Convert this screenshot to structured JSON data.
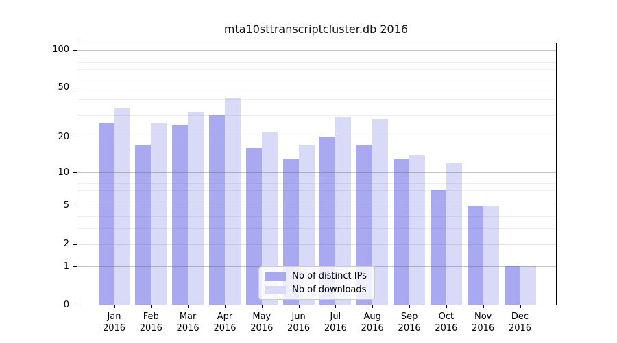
{
  "title": "mta10sttranscriptcluster.db 2016",
  "chart_data": {
    "type": "bar",
    "yscale": "log1p",
    "grid": true,
    "title": "mta10sttranscriptcluster.db 2016",
    "xlabel": "",
    "ylabel": "",
    "year": "2016",
    "categories": [
      "Jan",
      "Feb",
      "Mar",
      "Apr",
      "May",
      "Jun",
      "Jul",
      "Aug",
      "Sep",
      "Oct",
      "Nov",
      "Dec"
    ],
    "series": [
      {
        "name": "Nb of distinct IPs",
        "color": "#a9a9f1",
        "values": [
          26,
          17,
          25,
          30,
          16,
          13,
          20,
          17,
          13,
          7,
          5,
          1
        ]
      },
      {
        "name": "Nb of downloads",
        "color": "#d9d9f8",
        "values": [
          34,
          26,
          32,
          41,
          22,
          17,
          29,
          28,
          14,
          12,
          5,
          1
        ]
      }
    ],
    "yticks": [
      0,
      1,
      2,
      5,
      10,
      20,
      50,
      100
    ],
    "major_gridlines": [
      1,
      10,
      100
    ],
    "mid_gridlines": [
      2,
      5,
      20,
      50
    ],
    "minor_gridlines": [
      3,
      4,
      6,
      7,
      8,
      9,
      30,
      40,
      60,
      70,
      80,
      90
    ],
    "ylim": [
      0,
      113
    ],
    "legend_position": "lower center"
  }
}
